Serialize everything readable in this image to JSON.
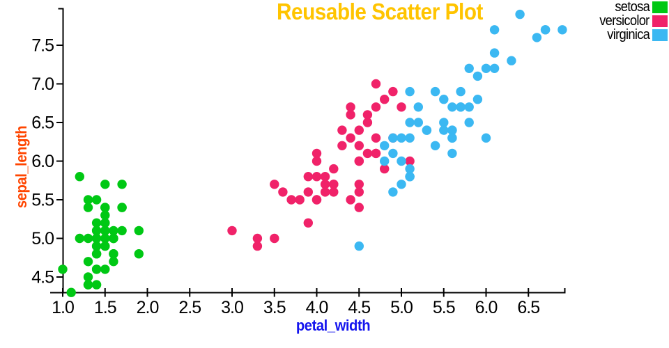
{
  "chart_data": {
    "type": "scatter",
    "title": "Reusable Scatter Plot",
    "title_color": "#FFC400",
    "xlabel": "petal_width",
    "xlabel_color": "#1414EE",
    "ylabel": "sepal_length",
    "ylabel_color": "#FF4500",
    "xlim": [
      0.85,
      6.95
    ],
    "ylim": [
      4.28,
      7.98
    ],
    "grid": false,
    "legend_position": "top-right",
    "axis_color": "#000000",
    "x_ticks": [
      {
        "v": 1.0,
        "label": "1.0"
      },
      {
        "v": 1.5,
        "label": "1.5"
      },
      {
        "v": 2.0,
        "label": "2.0"
      },
      {
        "v": 2.5,
        "label": "2.5"
      },
      {
        "v": 3.0,
        "label": "3.0"
      },
      {
        "v": 3.5,
        "label": "3.5"
      },
      {
        "v": 4.0,
        "label": "4.0"
      },
      {
        "v": 4.5,
        "label": "4.5"
      },
      {
        "v": 5.0,
        "label": "5.0"
      },
      {
        "v": 5.5,
        "label": "5.5"
      },
      {
        "v": 6.0,
        "label": "6.0"
      },
      {
        "v": 6.5,
        "label": "6.5"
      }
    ],
    "y_ticks": [
      {
        "v": 4.5,
        "label": "4.5"
      },
      {
        "v": 5.0,
        "label": "5.0"
      },
      {
        "v": 5.5,
        "label": "5.5"
      },
      {
        "v": 6.0,
        "label": "6.0"
      },
      {
        "v": 6.5,
        "label": "6.5"
      },
      {
        "v": 7.0,
        "label": "7.0"
      },
      {
        "v": 7.5,
        "label": "7.5"
      }
    ],
    "series": [
      {
        "name": "setosa",
        "color": "#00C814",
        "points": [
          [
            1.4,
            5.1
          ],
          [
            1.4,
            4.9
          ],
          [
            1.3,
            4.7
          ],
          [
            1.5,
            4.6
          ],
          [
            1.4,
            5.0
          ],
          [
            1.7,
            5.4
          ],
          [
            1.4,
            4.6
          ],
          [
            1.5,
            5.0
          ],
          [
            1.4,
            4.4
          ],
          [
            1.5,
            4.9
          ],
          [
            1.5,
            5.4
          ],
          [
            1.6,
            4.8
          ],
          [
            1.4,
            4.8
          ],
          [
            1.1,
            4.3
          ],
          [
            1.2,
            5.8
          ],
          [
            1.5,
            5.7
          ],
          [
            1.3,
            5.4
          ],
          [
            1.4,
            5.1
          ],
          [
            1.7,
            5.7
          ],
          [
            1.5,
            5.1
          ],
          [
            1.7,
            5.4
          ],
          [
            1.5,
            5.1
          ],
          [
            1.0,
            4.6
          ],
          [
            1.7,
            5.1
          ],
          [
            1.9,
            4.8
          ],
          [
            1.6,
            5.0
          ],
          [
            1.6,
            5.0
          ],
          [
            1.5,
            5.2
          ],
          [
            1.4,
            5.2
          ],
          [
            1.6,
            4.7
          ],
          [
            1.6,
            4.8
          ],
          [
            1.5,
            5.4
          ],
          [
            1.5,
            5.2
          ],
          [
            1.4,
            5.5
          ],
          [
            1.5,
            4.9
          ],
          [
            1.2,
            5.0
          ],
          [
            1.3,
            5.5
          ],
          [
            1.4,
            4.9
          ],
          [
            1.3,
            4.4
          ],
          [
            1.5,
            5.1
          ],
          [
            1.3,
            5.0
          ],
          [
            1.3,
            4.5
          ],
          [
            1.3,
            4.4
          ],
          [
            1.6,
            5.0
          ],
          [
            1.9,
            5.1
          ],
          [
            1.4,
            4.8
          ],
          [
            1.6,
            5.1
          ],
          [
            1.4,
            4.6
          ],
          [
            1.5,
            5.3
          ],
          [
            1.4,
            5.0
          ]
        ]
      },
      {
        "name": "versicolor",
        "color": "#F02269",
        "points": [
          [
            4.7,
            7.0
          ],
          [
            4.5,
            6.4
          ],
          [
            4.9,
            6.9
          ],
          [
            4.0,
            5.5
          ],
          [
            4.6,
            6.5
          ],
          [
            4.5,
            5.7
          ],
          [
            4.7,
            6.3
          ],
          [
            3.3,
            4.9
          ],
          [
            4.6,
            6.6
          ],
          [
            3.9,
            5.2
          ],
          [
            3.5,
            5.0
          ],
          [
            4.2,
            5.9
          ],
          [
            4.0,
            6.0
          ],
          [
            4.7,
            6.1
          ],
          [
            3.6,
            5.6
          ],
          [
            4.4,
            6.7
          ],
          [
            4.5,
            5.6
          ],
          [
            4.1,
            5.8
          ],
          [
            4.5,
            6.2
          ],
          [
            3.9,
            5.6
          ],
          [
            4.8,
            5.9
          ],
          [
            4.0,
            6.1
          ],
          [
            4.9,
            6.3
          ],
          [
            4.7,
            6.1
          ],
          [
            4.3,
            6.4
          ],
          [
            4.4,
            6.6
          ],
          [
            4.8,
            6.8
          ],
          [
            5.0,
            6.7
          ],
          [
            4.5,
            6.0
          ],
          [
            3.5,
            5.7
          ],
          [
            3.8,
            5.5
          ],
          [
            3.7,
            5.5
          ],
          [
            3.9,
            5.8
          ],
          [
            5.1,
            6.0
          ],
          [
            4.5,
            5.4
          ],
          [
            4.5,
            6.0
          ],
          [
            4.7,
            6.7
          ],
          [
            4.4,
            6.3
          ],
          [
            4.1,
            5.6
          ],
          [
            4.0,
            5.5
          ],
          [
            4.4,
            5.5
          ],
          [
            4.6,
            6.1
          ],
          [
            4.0,
            5.8
          ],
          [
            3.3,
            5.0
          ],
          [
            4.2,
            5.6
          ],
          [
            4.2,
            5.7
          ],
          [
            4.2,
            5.7
          ],
          [
            4.3,
            6.2
          ],
          [
            3.0,
            5.1
          ],
          [
            4.1,
            5.7
          ]
        ]
      },
      {
        "name": "virginica",
        "color": "#3BB8F2",
        "points": [
          [
            6.0,
            6.3
          ],
          [
            5.1,
            5.8
          ],
          [
            5.9,
            7.1
          ],
          [
            5.6,
            6.3
          ],
          [
            5.8,
            6.5
          ],
          [
            6.6,
            7.6
          ],
          [
            4.5,
            4.9
          ],
          [
            6.3,
            7.3
          ],
          [
            5.8,
            6.7
          ],
          [
            6.1,
            7.2
          ],
          [
            5.1,
            6.5
          ],
          [
            5.3,
            6.4
          ],
          [
            5.5,
            6.8
          ],
          [
            5.0,
            5.7
          ],
          [
            5.1,
            5.8
          ],
          [
            5.3,
            6.4
          ],
          [
            5.5,
            6.5
          ],
          [
            6.7,
            7.7
          ],
          [
            6.9,
            7.7
          ],
          [
            5.0,
            6.0
          ],
          [
            5.7,
            6.9
          ],
          [
            4.9,
            5.6
          ],
          [
            6.7,
            7.7
          ],
          [
            4.9,
            6.3
          ],
          [
            5.7,
            6.7
          ],
          [
            6.0,
            7.2
          ],
          [
            4.8,
            6.2
          ],
          [
            4.9,
            6.1
          ],
          [
            5.6,
            6.4
          ],
          [
            5.8,
            7.2
          ],
          [
            6.1,
            7.4
          ],
          [
            6.4,
            7.9
          ],
          [
            5.6,
            6.4
          ],
          [
            5.1,
            6.3
          ],
          [
            5.6,
            6.1
          ],
          [
            6.1,
            7.7
          ],
          [
            5.6,
            6.3
          ],
          [
            5.5,
            6.4
          ],
          [
            4.8,
            6.0
          ],
          [
            5.4,
            6.9
          ],
          [
            5.6,
            6.7
          ],
          [
            5.1,
            6.9
          ],
          [
            5.1,
            5.8
          ],
          [
            5.9,
            6.8
          ],
          [
            5.7,
            6.7
          ],
          [
            5.2,
            6.7
          ],
          [
            5.0,
            6.3
          ],
          [
            5.2,
            6.5
          ],
          [
            5.4,
            6.2
          ],
          [
            5.1,
            5.9
          ]
        ]
      }
    ]
  }
}
